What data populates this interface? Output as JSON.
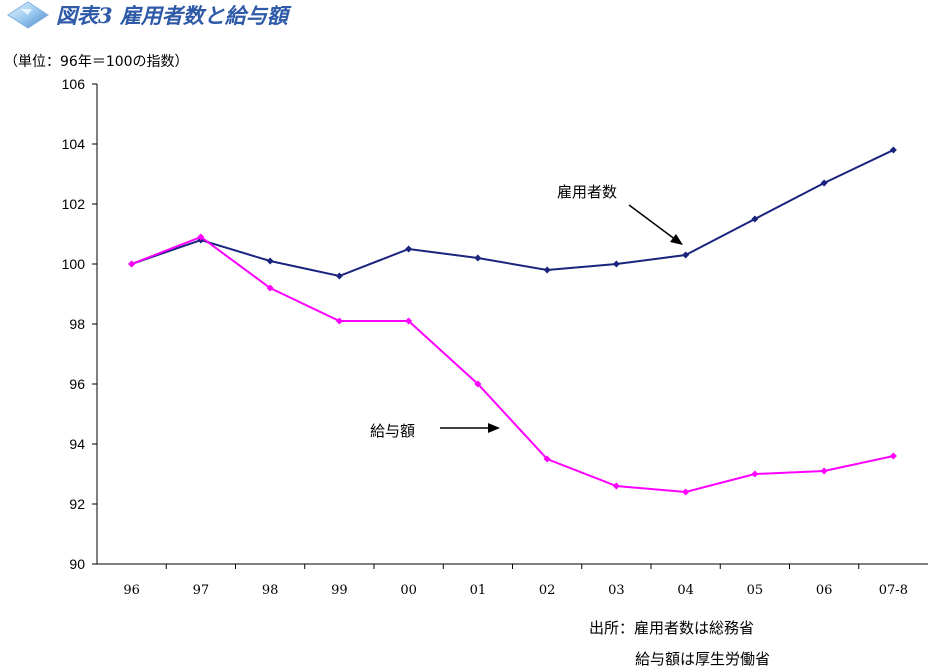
{
  "header": {
    "title": "図表3 雇用者数と給与額",
    "unit_note": "（単位：96年＝100の指数）"
  },
  "colors": {
    "title": "#2E5AA8",
    "axis": "#000000"
  },
  "source": {
    "line1": "出所：雇用者数は総務省",
    "line2": "給与額は厚生労働省"
  },
  "chart_data": {
    "type": "line",
    "categories": [
      "96",
      "97",
      "98",
      "99",
      "00",
      "01",
      "02",
      "03",
      "04",
      "05",
      "06",
      "07-8"
    ],
    "ylim": [
      90,
      106
    ],
    "yticks": [
      90,
      92,
      94,
      96,
      98,
      100,
      102,
      104,
      106
    ],
    "grid": false,
    "series": [
      {
        "name": "雇用者数",
        "color": "#1A237E",
        "values": [
          100.0,
          100.8,
          100.1,
          99.6,
          100.5,
          100.2,
          99.8,
          100.0,
          100.3,
          101.5,
          102.7,
          103.8
        ]
      },
      {
        "name": "給与額",
        "color": "#FF00FF",
        "values": [
          100.0,
          100.9,
          99.2,
          98.1,
          98.1,
          96.0,
          93.5,
          92.6,
          92.4,
          93.0,
          93.1,
          93.6
        ]
      }
    ]
  }
}
